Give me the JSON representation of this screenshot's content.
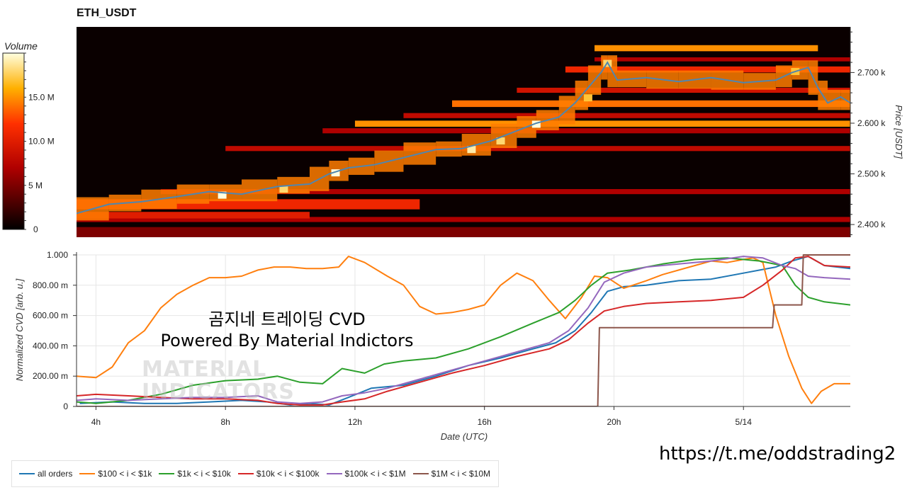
{
  "chart_data": [
    {
      "type": "heatmap",
      "title": "ETH_USDT",
      "ylabel": "Price [USDT]",
      "ylim": [
        2375,
        2790
      ],
      "xlim": [
        3.4,
        27.3
      ],
      "yticks": [
        {
          "value": 2400,
          "label": "2.400 k"
        },
        {
          "value": 2500,
          "label": "2.500 k"
        },
        {
          "value": 2600,
          "label": "2.600 k"
        },
        {
          "value": 2700,
          "label": "2.700 k"
        }
      ],
      "colorbar": {
        "title": "Volume",
        "range": [
          0,
          20000000
        ],
        "ticks": [
          {
            "value": 0,
            "label": "0"
          },
          {
            "value": 5000000,
            "label": "5 M"
          },
          {
            "value": 10000000,
            "label": "10.0 M"
          },
          {
            "value": 15000000,
            "label": "15.0 M"
          }
        ]
      },
      "price_line": {
        "color": "#4f86b0",
        "x": [
          3.4,
          4.4,
          5.4,
          6.5,
          7.5,
          8.5,
          9.6,
          10.6,
          11.2,
          11.8,
          12.6,
          13.5,
          14.5,
          15.3,
          16.2,
          17.0,
          17.6,
          18.3,
          18.8,
          19.2,
          19.6,
          19.8,
          20.1,
          21.0,
          22.0,
          23.0,
          24.0,
          25.0,
          25.5,
          26.0,
          26.3,
          26.6,
          27.0,
          27.3
        ],
        "y": [
          2422,
          2440,
          2445,
          2455,
          2465,
          2460,
          2475,
          2480,
          2500,
          2512,
          2518,
          2532,
          2548,
          2550,
          2565,
          2585,
          2600,
          2612,
          2640,
          2670,
          2700,
          2720,
          2685,
          2690,
          2682,
          2690,
          2680,
          2685,
          2700,
          2710,
          2670,
          2640,
          2652,
          2640
        ]
      },
      "volume_bands": [
        {
          "x0": 3.4,
          "x1": 27.3,
          "y0": 2375,
          "y1": 2395,
          "level": 0.25
        },
        {
          "x0": 3.4,
          "x1": 27.3,
          "y0": 2405,
          "y1": 2415,
          "level": 0.35
        },
        {
          "x0": 3.4,
          "x1": 10.6,
          "y0": 2412,
          "y1": 2425,
          "level": 0.5
        },
        {
          "x0": 3.4,
          "x1": 14.0,
          "y0": 2430,
          "y1": 2450,
          "level": 0.55
        },
        {
          "x0": 6.0,
          "x1": 27.3,
          "y0": 2460,
          "y1": 2470,
          "level": 0.35
        },
        {
          "x0": 8.0,
          "x1": 27.3,
          "y0": 2545,
          "y1": 2555,
          "level": 0.4
        },
        {
          "x0": 11.0,
          "x1": 27.3,
          "y0": 2580,
          "y1": 2590,
          "level": 0.35
        },
        {
          "x0": 12.0,
          "x1": 27.3,
          "y0": 2593,
          "y1": 2605,
          "level": 0.75
        },
        {
          "x0": 13.5,
          "x1": 27.3,
          "y0": 2610,
          "y1": 2620,
          "level": 0.4
        },
        {
          "x0": 15.0,
          "x1": 27.3,
          "y0": 2632,
          "y1": 2645,
          "level": 0.7
        },
        {
          "x0": 17.0,
          "x1": 27.3,
          "y0": 2660,
          "y1": 2670,
          "level": 0.45
        },
        {
          "x0": 18.5,
          "x1": 27.3,
          "y0": 2700,
          "y1": 2712,
          "level": 0.55
        },
        {
          "x0": 19.4,
          "x1": 26.3,
          "y0": 2742,
          "y1": 2754,
          "level": 0.75
        },
        {
          "x0": 19.4,
          "x1": 27.3,
          "y0": 2722,
          "y1": 2730,
          "level": 0.35
        }
      ],
      "hotspots": [
        {
          "x": 7.9,
          "y": 2458,
          "level": 1.0
        },
        {
          "x": 11.4,
          "y": 2502,
          "level": 1.0
        },
        {
          "x": 15.6,
          "y": 2548,
          "level": 0.95
        },
        {
          "x": 16.5,
          "y": 2565,
          "level": 0.9
        },
        {
          "x": 17.6,
          "y": 2598,
          "level": 1.0
        },
        {
          "x": 19.8,
          "y": 2718,
          "level": 0.9
        },
        {
          "x": 25.6,
          "y": 2702,
          "level": 0.85
        },
        {
          "x": 19.2,
          "y": 2650,
          "level": 0.85
        },
        {
          "x": 9.8,
          "y": 2470,
          "level": 0.9
        }
      ]
    },
    {
      "type": "line",
      "xlabel": "Date (UTC)",
      "ylabel": "Normalized CVD [arb. u.]",
      "ylim": [
        0,
        1
      ],
      "xlim": [
        3.4,
        27.3
      ],
      "xticks": [
        {
          "value": 4,
          "label": "4h"
        },
        {
          "value": 8,
          "label": "8h"
        },
        {
          "value": 12,
          "label": "12h"
        },
        {
          "value": 16,
          "label": "16h"
        },
        {
          "value": 20,
          "label": "20h"
        },
        {
          "value": 24,
          "label": "5/14"
        }
      ],
      "yticks": [
        {
          "value": 0,
          "label": "0"
        },
        {
          "value": 0.2,
          "label": "200.00 m"
        },
        {
          "value": 0.4,
          "label": "400.00 m"
        },
        {
          "value": 0.6,
          "label": "600.00 m"
        },
        {
          "value": 0.8,
          "label": "800.00 m"
        },
        {
          "value": 1.0,
          "label": "1.000"
        }
      ],
      "grid": true,
      "legend_position": "bottom-left",
      "series": [
        {
          "name": "all orders",
          "color": "#1f77b4",
          "x": [
            3.5,
            4.5,
            5.5,
            6.5,
            7.5,
            8.5,
            9.3,
            10.0,
            10.6,
            11.2,
            11.8,
            12.5,
            13.5,
            14.5,
            15.5,
            16.5,
            17.5,
            18.2,
            18.8,
            19.3,
            19.8,
            20.3,
            21.0,
            22.0,
            23.0,
            24.0,
            25.0,
            25.5,
            26.0,
            26.5,
            27.3
          ],
          "y": [
            0.02,
            0.03,
            0.02,
            0.02,
            0.03,
            0.04,
            0.03,
            0.01,
            0.02,
            0.01,
            0.06,
            0.12,
            0.14,
            0.2,
            0.27,
            0.32,
            0.38,
            0.42,
            0.5,
            0.62,
            0.76,
            0.79,
            0.8,
            0.83,
            0.84,
            0.88,
            0.92,
            0.96,
            0.99,
            0.93,
            0.91
          ]
        },
        {
          "name": "$100 < i < $1k",
          "color": "#ff7f0e",
          "x": [
            3.4,
            4.0,
            4.5,
            5.0,
            5.5,
            6.0,
            6.5,
            7.0,
            7.5,
            8.0,
            8.5,
            9.0,
            9.5,
            10.0,
            10.5,
            11.0,
            11.5,
            11.8,
            12.3,
            13.0,
            13.5,
            14.0,
            14.5,
            15.0,
            15.5,
            16.0,
            16.5,
            17.0,
            17.5,
            18.0,
            18.5,
            19.0,
            19.4,
            19.8,
            20.3,
            21.0,
            21.5,
            22.0,
            22.5,
            23.0,
            23.5,
            24.0,
            24.3,
            24.6,
            25.0,
            25.4,
            25.8,
            26.1,
            26.4,
            26.8,
            27.3
          ],
          "y": [
            0.2,
            0.19,
            0.26,
            0.42,
            0.5,
            0.65,
            0.74,
            0.8,
            0.85,
            0.85,
            0.86,
            0.9,
            0.92,
            0.92,
            0.91,
            0.91,
            0.92,
            0.99,
            0.95,
            0.86,
            0.8,
            0.66,
            0.61,
            0.62,
            0.64,
            0.67,
            0.8,
            0.88,
            0.83,
            0.7,
            0.58,
            0.72,
            0.86,
            0.85,
            0.78,
            0.83,
            0.87,
            0.9,
            0.93,
            0.96,
            0.95,
            0.97,
            0.98,
            0.95,
            0.6,
            0.33,
            0.12,
            0.02,
            0.1,
            0.15,
            0.15
          ]
        },
        {
          "name": "$1k < i < $10k",
          "color": "#2ca02c",
          "x": [
            3.4,
            4.0,
            5.0,
            6.0,
            7.0,
            8.0,
            9.0,
            9.6,
            10.3,
            11.0,
            11.6,
            12.3,
            12.9,
            13.5,
            14.5,
            15.5,
            16.5,
            17.5,
            18.3,
            18.8,
            19.3,
            19.8,
            20.5,
            21.5,
            22.5,
            23.5,
            24.5,
            25.2,
            25.6,
            26.0,
            26.5,
            27.3
          ],
          "y": [
            0.03,
            0.02,
            0.04,
            0.08,
            0.14,
            0.17,
            0.18,
            0.2,
            0.16,
            0.15,
            0.25,
            0.22,
            0.28,
            0.3,
            0.32,
            0.38,
            0.46,
            0.55,
            0.62,
            0.7,
            0.8,
            0.88,
            0.9,
            0.94,
            0.97,
            0.98,
            0.96,
            0.93,
            0.8,
            0.72,
            0.69,
            0.67
          ]
        },
        {
          "name": "$10k < i < $100k",
          "color": "#d62728",
          "x": [
            3.4,
            4.0,
            5.0,
            6.0,
            7.0,
            8.0,
            9.0,
            9.6,
            10.3,
            11.0,
            11.6,
            12.3,
            13.0,
            14.0,
            15.0,
            16.0,
            17.0,
            18.0,
            18.6,
            19.2,
            19.7,
            20.3,
            21.0,
            22.0,
            23.0,
            24.0,
            24.6,
            25.2,
            25.6,
            26.0,
            26.5,
            27.3
          ],
          "y": [
            0.07,
            0.08,
            0.07,
            0.06,
            0.05,
            0.05,
            0.04,
            0.02,
            0.01,
            0.01,
            0.03,
            0.05,
            0.1,
            0.16,
            0.22,
            0.27,
            0.33,
            0.38,
            0.44,
            0.55,
            0.63,
            0.66,
            0.68,
            0.69,
            0.7,
            0.72,
            0.8,
            0.9,
            0.98,
            0.99,
            0.93,
            0.92
          ]
        },
        {
          "name": "$100k < i < $1M",
          "color": "#9467bd",
          "x": [
            3.4,
            4.0,
            5.0,
            6.0,
            7.0,
            8.0,
            9.0,
            9.6,
            10.3,
            11.0,
            11.6,
            12.3,
            13.0,
            14.0,
            15.0,
            16.0,
            17.0,
            18.0,
            18.6,
            19.2,
            19.7,
            20.3,
            21.0,
            22.0,
            23.0,
            24.0,
            24.6,
            25.2,
            25.6,
            26.0,
            26.5,
            27.3
          ],
          "y": [
            0.04,
            0.05,
            0.04,
            0.05,
            0.06,
            0.06,
            0.07,
            0.03,
            0.02,
            0.03,
            0.07,
            0.09,
            0.12,
            0.18,
            0.24,
            0.3,
            0.36,
            0.42,
            0.5,
            0.65,
            0.82,
            0.88,
            0.92,
            0.94,
            0.96,
            0.99,
            0.98,
            0.93,
            0.91,
            0.86,
            0.85,
            0.84
          ]
        },
        {
          "name": "$1M < i < $10M",
          "color": "#8c564b",
          "x": [
            3.4,
            19.5,
            19.55,
            24.9,
            24.95,
            25.8,
            25.85,
            27.3
          ],
          "y": [
            0,
            0,
            0.52,
            0.52,
            0.67,
            0.67,
            1.0,
            1.0
          ]
        }
      ]
    }
  ],
  "overlay": {
    "line1": "곰지네 트레이딩 CVD",
    "line2": "Powered By Material Indictors",
    "watermark_line1": "MATERIAL",
    "watermark_line2": "INDICATORS",
    "link": "https://t.me/oddstrading2"
  }
}
